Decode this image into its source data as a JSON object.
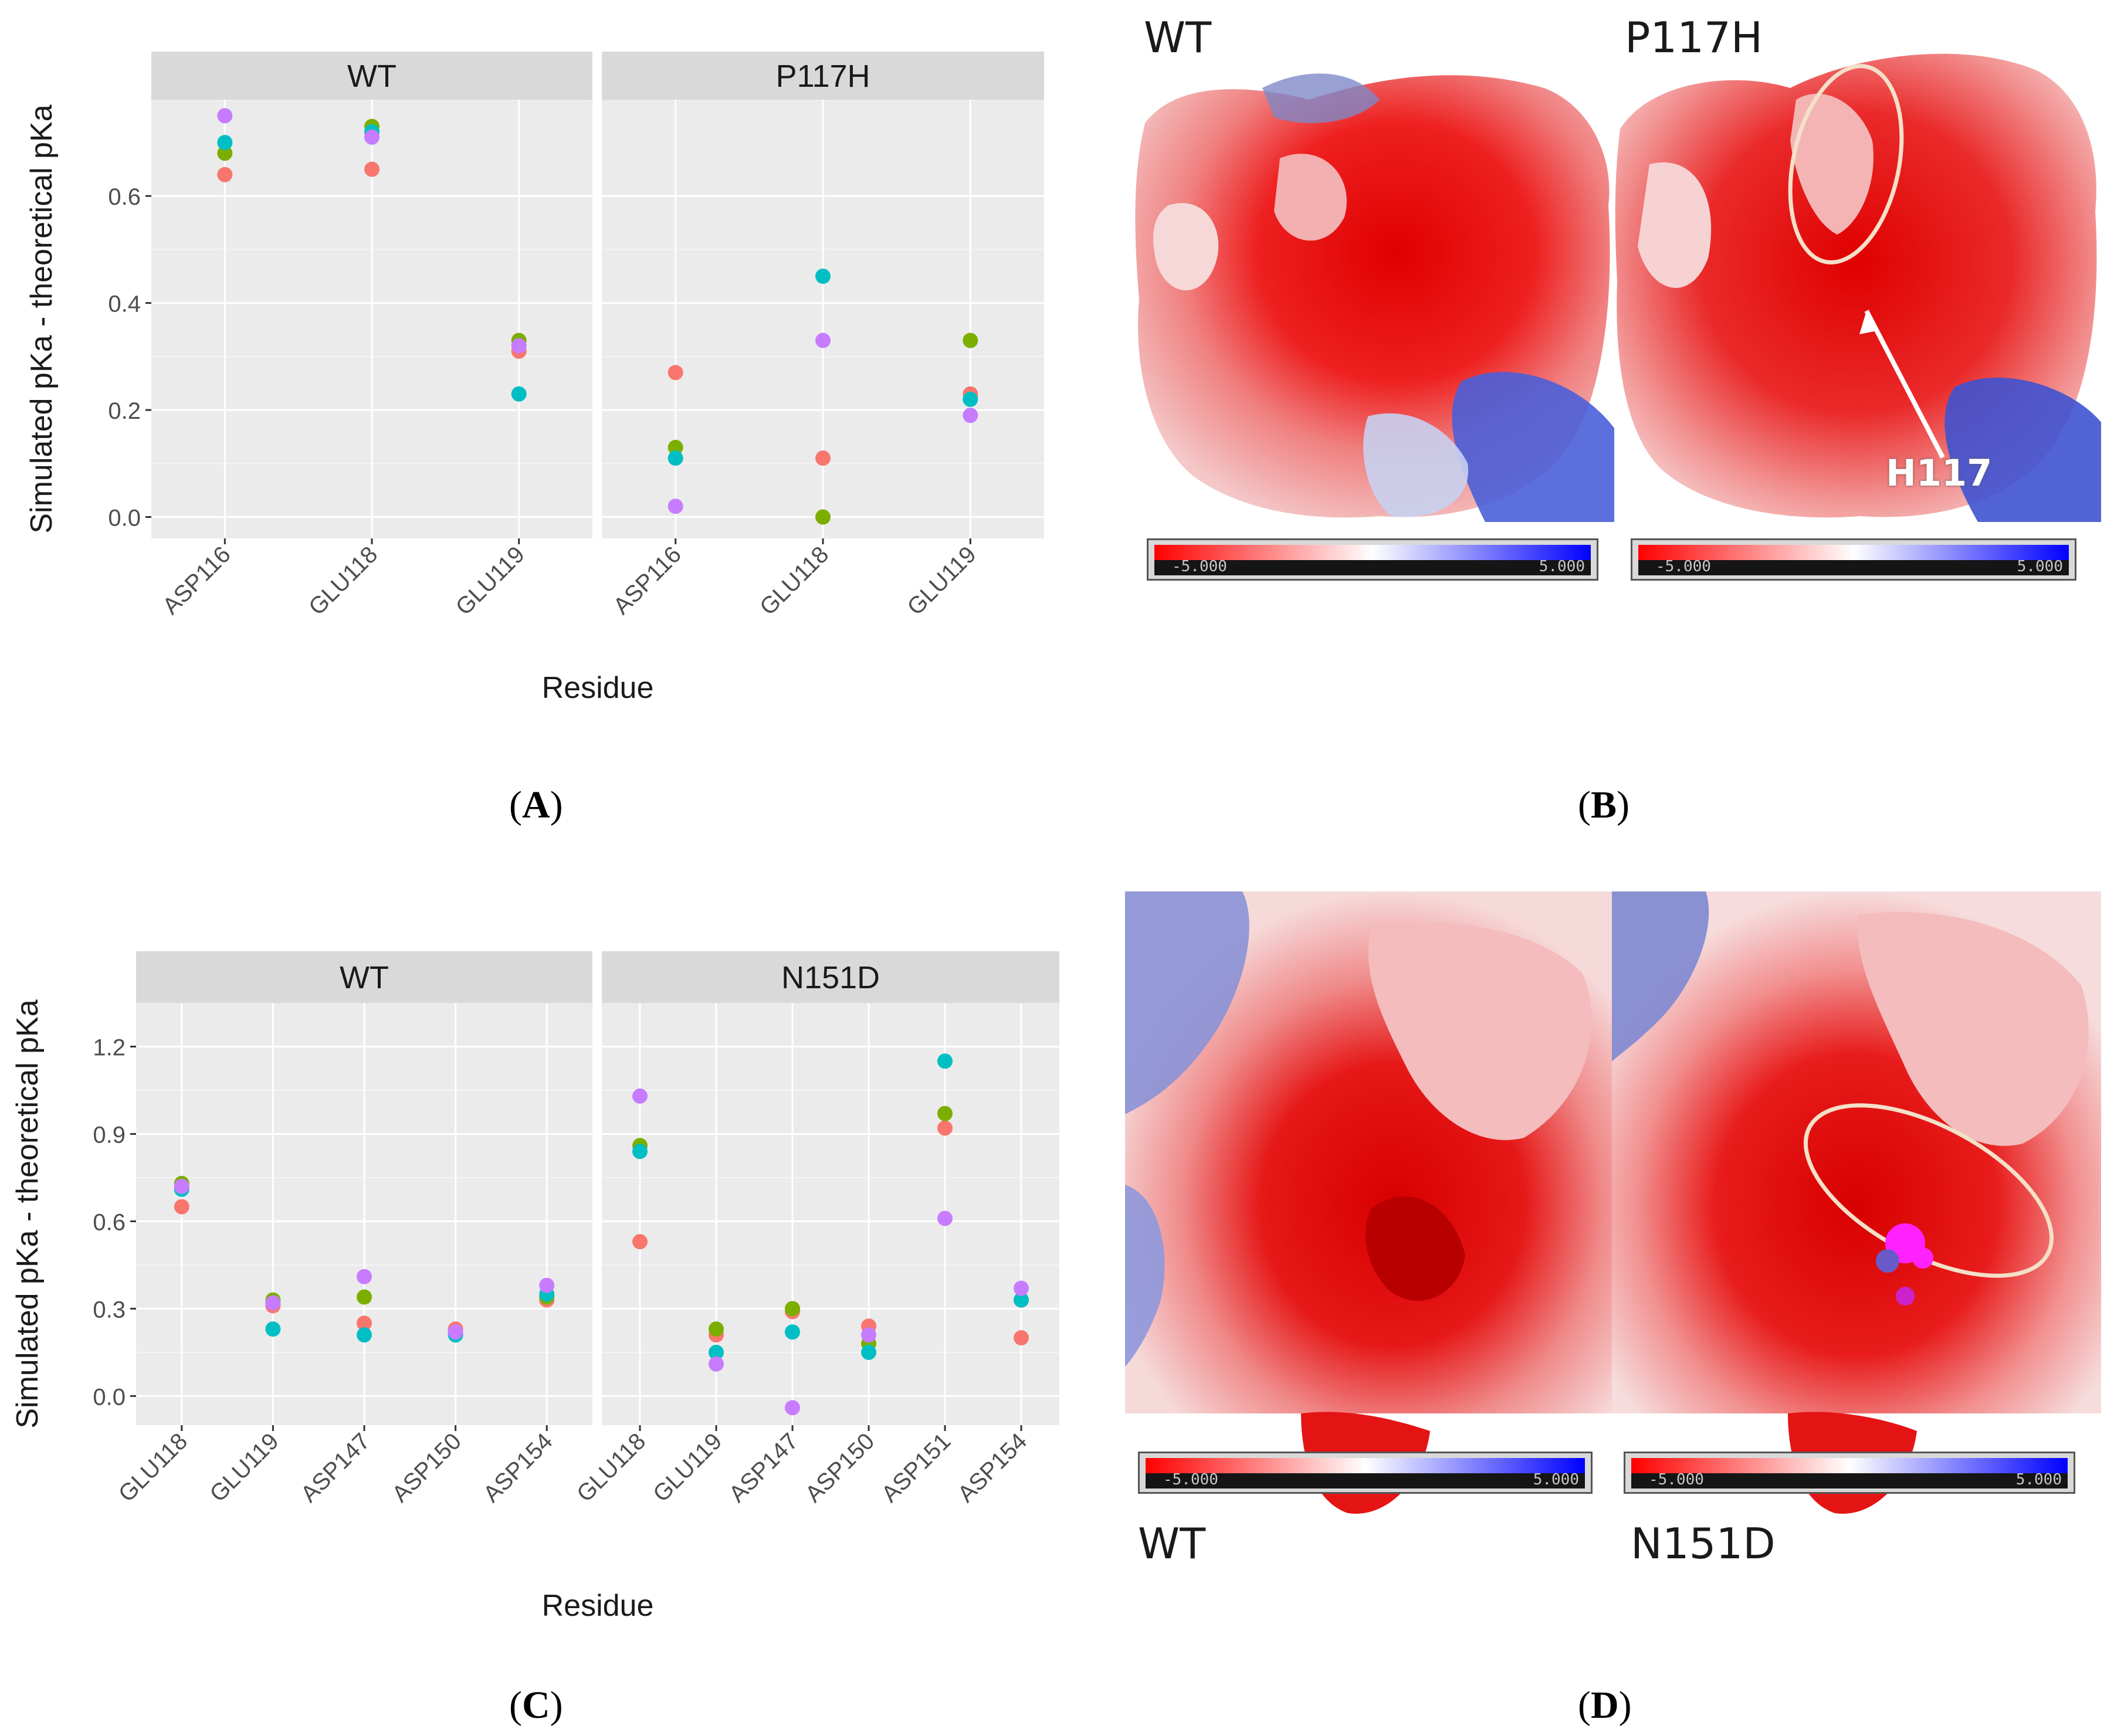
{
  "colors": {
    "series": [
      "#F8766D",
      "#7CAE00",
      "#00BFC4",
      "#C77CFF"
    ],
    "panel_bg": "#EBEBEB",
    "strip_bg": "#D9D9D9",
    "grid": "#FFFFFF"
  },
  "panel_labels": {
    "A": "A",
    "B": "B",
    "C": "C",
    "D": "D"
  },
  "chart_data": [
    {
      "id": "A",
      "type": "scatter",
      "ylabel": "Simulated pKa - theoretical pKa",
      "xlabel": "Residue",
      "ylim": [
        -0.04,
        0.78
      ],
      "yticks": [
        0.0,
        0.2,
        0.4,
        0.6
      ],
      "ytick_labels": [
        "0.0",
        "0.2",
        "0.4",
        "0.6"
      ],
      "facets": [
        {
          "title": "WT",
          "categories": [
            "ASP116",
            "GLU118",
            "GLU119"
          ],
          "series": [
            {
              "name": "series-1",
              "color": "#F8766D",
              "values": [
                0.64,
                0.65,
                0.31
              ]
            },
            {
              "name": "series-2",
              "color": "#7CAE00",
              "values": [
                0.68,
                0.73,
                0.33
              ]
            },
            {
              "name": "series-3",
              "color": "#00BFC4",
              "values": [
                0.7,
                0.72,
                0.23
              ]
            },
            {
              "name": "series-4",
              "color": "#C77CFF",
              "values": [
                0.75,
                0.71,
                0.32
              ]
            }
          ]
        },
        {
          "title": "P117H",
          "categories": [
            "ASP116",
            "GLU118",
            "GLU119"
          ],
          "series": [
            {
              "name": "series-1",
              "color": "#F8766D",
              "values": [
                0.27,
                0.11,
                0.23
              ]
            },
            {
              "name": "series-2",
              "color": "#7CAE00",
              "values": [
                0.13,
                0.0,
                0.33
              ]
            },
            {
              "name": "series-3",
              "color": "#00BFC4",
              "values": [
                0.11,
                0.45,
                0.22
              ]
            },
            {
              "name": "series-4",
              "color": "#C77CFF",
              "values": [
                0.02,
                0.33,
                0.19
              ]
            }
          ]
        }
      ]
    },
    {
      "id": "C",
      "type": "scatter",
      "ylabel": "Simulated pKa - theoretical pKa",
      "xlabel": "Residue",
      "ylim": [
        -0.1,
        1.35
      ],
      "yticks": [
        0.0,
        0.3,
        0.6,
        0.9,
        1.2
      ],
      "ytick_labels": [
        "0.0",
        "0.3",
        "0.6",
        "0.9",
        "1.2"
      ],
      "facets": [
        {
          "title": "WT",
          "categories": [
            "GLU118",
            "GLU119",
            "ASP147",
            "ASP150",
            "ASP154"
          ],
          "series": [
            {
              "name": "series-1",
              "color": "#F8766D",
              "values": [
                0.65,
                0.31,
                0.25,
                0.23,
                0.33
              ]
            },
            {
              "name": "series-2",
              "color": "#7CAE00",
              "values": [
                0.73,
                0.33,
                0.34,
                0.21,
                0.34
              ]
            },
            {
              "name": "series-3",
              "color": "#00BFC4",
              "values": [
                0.71,
                0.23,
                0.21,
                0.21,
                0.35
              ]
            },
            {
              "name": "series-4",
              "color": "#C77CFF",
              "values": [
                0.72,
                0.32,
                0.41,
                0.22,
                0.38
              ]
            }
          ]
        },
        {
          "title": "N151D",
          "categories": [
            "GLU118",
            "GLU119",
            "ASP147",
            "ASP150",
            "ASP151",
            "ASP154"
          ],
          "series": [
            {
              "name": "series-1",
              "color": "#F8766D",
              "values": [
                0.53,
                0.21,
                0.29,
                0.24,
                0.92,
                0.2
              ]
            },
            {
              "name": "series-2",
              "color": "#7CAE00",
              "values": [
                0.86,
                0.23,
                0.3,
                0.18,
                0.97,
                0.33
              ]
            },
            {
              "name": "series-3",
              "color": "#00BFC4",
              "values": [
                0.84,
                0.15,
                0.22,
                0.15,
                1.15,
                0.33
              ]
            },
            {
              "name": "series-4",
              "color": "#C77CFF",
              "values": [
                1.03,
                0.11,
                -0.04,
                0.21,
                0.61,
                0.37
              ]
            }
          ]
        }
      ]
    }
  ],
  "panel_B": {
    "left_title": "WT",
    "right_title": "P117H",
    "annotation": "H117",
    "scale_min": "-5.000",
    "scale_max": "5.000"
  },
  "panel_D": {
    "left_title": "WT",
    "right_title": "N151D",
    "scale_min": "-5.000",
    "scale_max": "5.000"
  }
}
